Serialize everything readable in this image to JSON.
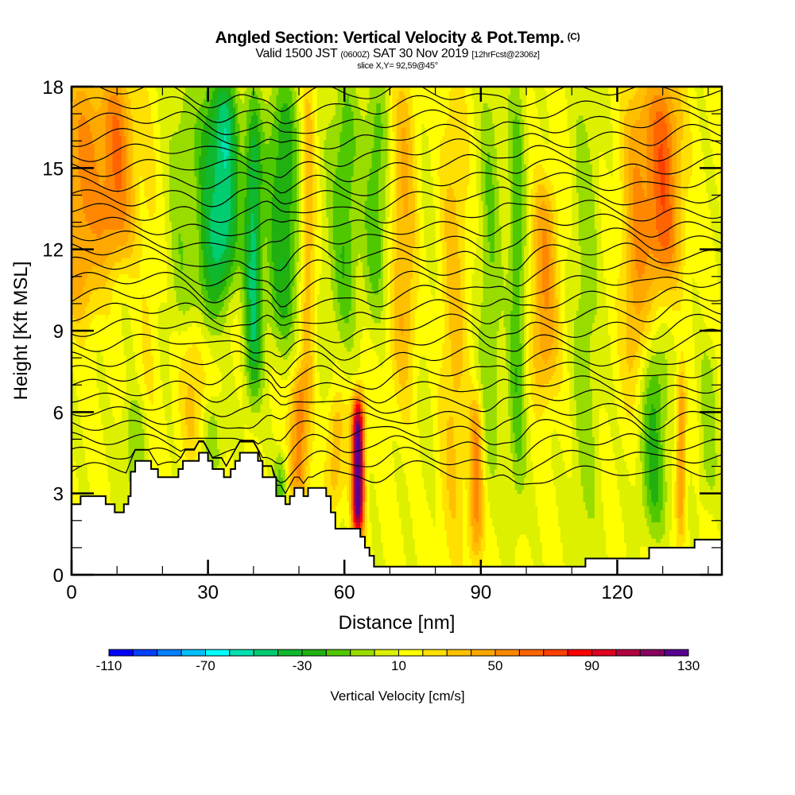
{
  "header": {
    "title": "Angled Section: Vertical Velocity & Pot.Temp.",
    "title_units": "(C)",
    "valid_prefix": "Valid 1500 JST",
    "valid_utc": "(0600Z)",
    "valid_date": "SAT 30 Nov 2019",
    "forecast": "[12hrFcst@2306z]",
    "slice": "slice X,Y= 92,59@45°"
  },
  "chart_data": {
    "type": "heatmap",
    "title": "Angled Section: Vertical Velocity & Pot.Temp. (C)",
    "xlabel": "Distance [nm]",
    "ylabel": "Height [Kft MSL]",
    "xlim": [
      0,
      143
    ],
    "ylim": [
      0,
      18
    ],
    "xticks": [
      0,
      30,
      60,
      90,
      120
    ],
    "yticks": [
      0,
      3,
      6,
      9,
      12,
      15,
      18
    ],
    "x_minor_step": 10,
    "y_minor_step": 1,
    "colorbar": {
      "label": "Vertical Velocity [cm/s]",
      "min": -110,
      "max": 130,
      "step": 10,
      "tick_labels": [
        "-110",
        "-70",
        "-30",
        "10",
        "50",
        "90",
        "130"
      ],
      "tick_values": [
        -110,
        -70,
        -30,
        10,
        50,
        90,
        130
      ],
      "colors": [
        "#0000ff",
        "#0040ff",
        "#0080ff",
        "#00c0ff",
        "#00ffff",
        "#00e0b0",
        "#00cc70",
        "#10b830",
        "#20b010",
        "#50c800",
        "#98dc00",
        "#dcf000",
        "#ffff00",
        "#ffe000",
        "#ffc000",
        "#ffa800",
        "#ff8800",
        "#ff6400",
        "#ff4000",
        "#ff0000",
        "#e00020",
        "#b00040",
        "#880060",
        "#580090"
      ]
    },
    "field_background_value": 12,
    "velocity_features": [
      {
        "x": 2,
        "z_bottom": 10,
        "z_top": 18,
        "w": 40,
        "width": 5
      },
      {
        "x": 10,
        "z_bottom": 12,
        "z_top": 18,
        "w": 45,
        "width": 4
      },
      {
        "x": 17,
        "z_bottom": 3,
        "z_top": 18,
        "w": 8,
        "width": 2
      },
      {
        "x": 24,
        "z_bottom": 9,
        "z_top": 18,
        "w": -18,
        "width": 3
      },
      {
        "x": 27,
        "z_bottom": 5,
        "z_top": 9,
        "w": 22,
        "width": 3
      },
      {
        "x": 30,
        "z_bottom": 9,
        "z_top": 18,
        "w": -35,
        "width": 3
      },
      {
        "x": 34,
        "z_bottom": 11,
        "z_top": 18,
        "w": -55,
        "width": 3
      },
      {
        "x": 40,
        "z_bottom": 7,
        "z_top": 17,
        "w": -55,
        "width": 2
      },
      {
        "x": 44,
        "z_bottom": 9,
        "z_top": 18,
        "w": -12,
        "width": 2
      },
      {
        "x": 47,
        "z_bottom": 9,
        "z_top": 18,
        "w": -40,
        "width": 3
      },
      {
        "x": 52,
        "z_bottom": 7,
        "z_top": 18,
        "w": 28,
        "width": 1.5
      },
      {
        "x": 56,
        "z_bottom": 7,
        "z_top": 18,
        "w": -5,
        "width": 2
      },
      {
        "x": 60,
        "z_bottom": 9,
        "z_top": 18,
        "w": -30,
        "width": 3
      },
      {
        "x": 67,
        "z_bottom": 10,
        "z_top": 18,
        "w": -28,
        "width": 3
      },
      {
        "x": 50,
        "z_bottom": 3,
        "z_top": 7,
        "w": 45,
        "width": 2
      },
      {
        "x": 63,
        "z_bottom": 2,
        "z_top": 6,
        "w": 130,
        "width": 1.3
      },
      {
        "x": 58,
        "z_bottom": 3,
        "z_top": 6,
        "w": 25,
        "width": 2
      },
      {
        "x": 46,
        "z_bottom": 2.5,
        "z_top": 4,
        "w": -25,
        "width": 1.5
      },
      {
        "x": 14,
        "z_bottom": 3,
        "z_top": 6,
        "w": -20,
        "width": 3
      },
      {
        "x": 31,
        "z_bottom": 4,
        "z_top": 6,
        "w": -20,
        "width": 2.5
      },
      {
        "x": 73,
        "z_bottom": 7,
        "z_top": 18,
        "w": 30,
        "width": 3
      },
      {
        "x": 78,
        "z_bottom": 3,
        "z_top": 18,
        "w": -5,
        "width": 3
      },
      {
        "x": 84,
        "z_bottom": 1,
        "z_top": 18,
        "w": 22,
        "width": 3
      },
      {
        "x": 89,
        "z_bottom": 1,
        "z_top": 6,
        "w": 42,
        "width": 1.5
      },
      {
        "x": 92,
        "z_bottom": 4,
        "z_top": 18,
        "w": -22,
        "width": 2.5
      },
      {
        "x": 98,
        "z_bottom": 3,
        "z_top": 18,
        "w": -30,
        "width": 2
      },
      {
        "x": 104,
        "z_bottom": 7,
        "z_top": 14,
        "w": 38,
        "width": 3
      },
      {
        "x": 113,
        "z_bottom": 1,
        "z_top": 18,
        "w": -18,
        "width": 3
      },
      {
        "x": 124,
        "z_bottom": 7,
        "z_top": 18,
        "w": 32,
        "width": 3
      },
      {
        "x": 130,
        "z_bottom": 11,
        "z_top": 18,
        "w": 55,
        "width": 4
      },
      {
        "x": 128,
        "z_bottom": 2,
        "z_top": 8,
        "w": -35,
        "width": 3
      },
      {
        "x": 134,
        "z_bottom": 2,
        "z_top": 7,
        "w": 40,
        "width": 1
      },
      {
        "x": 140,
        "z_bottom": 3,
        "z_top": 8,
        "w": -18,
        "width": 2
      }
    ],
    "terrain_height_kft": [
      [
        0,
        2.6
      ],
      [
        2,
        2.9
      ],
      [
        7.5,
        2.6
      ],
      [
        9.5,
        2.3
      ],
      [
        11.5,
        2.6
      ],
      [
        12.5,
        2.9
      ],
      [
        13,
        3.8
      ],
      [
        14,
        4.2
      ],
      [
        17.5,
        3.9
      ],
      [
        19,
        3.6
      ],
      [
        23.5,
        3.9
      ],
      [
        24.5,
        4.2
      ],
      [
        28,
        4.5
      ],
      [
        30,
        4.2
      ],
      [
        31,
        3.9
      ],
      [
        33.5,
        3.6
      ],
      [
        35,
        3.9
      ],
      [
        36,
        4.2
      ],
      [
        37,
        4.5
      ],
      [
        41,
        4.2
      ],
      [
        42,
        3.6
      ],
      [
        45,
        2.9
      ],
      [
        47,
        2.6
      ],
      [
        48,
        2.9
      ],
      [
        49,
        3.2
      ],
      [
        51,
        2.9
      ],
      [
        52,
        3.2
      ],
      [
        56,
        2.9
      ],
      [
        57,
        2.3
      ],
      [
        58,
        1.7
      ],
      [
        63.5,
        1.4
      ],
      [
        64.5,
        1.0
      ],
      [
        65.5,
        0.7
      ],
      [
        66.5,
        0.3
      ],
      [
        113,
        0.6
      ],
      [
        127,
        1.0
      ],
      [
        137,
        1.3
      ],
      [
        143,
        1.3
      ]
    ],
    "theta_contours": {
      "label": "Potential temperature (C)",
      "interval_kft_approx": 0.55,
      "count": 27,
      "lowest_base_kft": 3.8,
      "highest_base_kft": 17.8
    }
  }
}
